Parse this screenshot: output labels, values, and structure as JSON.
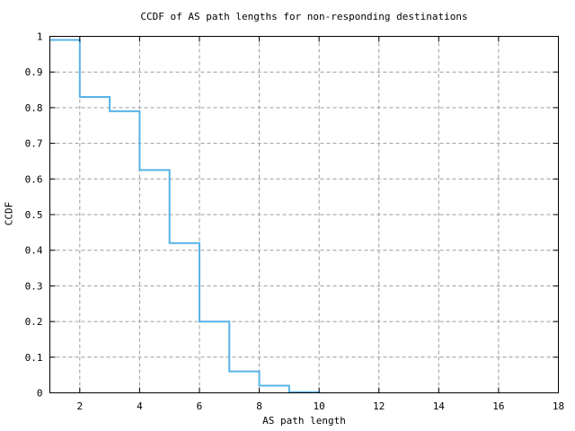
{
  "chart_data": {
    "type": "line",
    "subtype": "step-ccdf",
    "title": "CCDF of AS path lengths for non-responding destinations",
    "xlabel": "AS path length",
    "ylabel": "CCDF",
    "xlim": [
      1,
      18
    ],
    "ylim": [
      0,
      1
    ],
    "x_ticks": [
      2,
      4,
      6,
      8,
      10,
      12,
      14,
      16,
      18
    ],
    "x_tick_labels": [
      "2",
      "4",
      "6",
      "8",
      "10",
      "12",
      "14",
      "16",
      "18"
    ],
    "y_ticks": [
      0,
      0.1,
      0.2,
      0.3,
      0.4,
      0.5,
      0.6,
      0.7,
      0.8,
      0.9,
      1
    ],
    "y_tick_labels": [
      "0",
      "0.1",
      "0.2",
      "0.3",
      "0.4",
      "0.5",
      "0.6",
      "0.7",
      "0.8",
      "0.9",
      "1"
    ],
    "grid": true,
    "legend": "none",
    "series": [
      {
        "name": "ccdf-step",
        "x": [
          1,
          2,
          3,
          4,
          5,
          6,
          7,
          8,
          9,
          10
        ],
        "y": [
          0.99,
          0.83,
          0.79,
          0.625,
          0.42,
          0.2,
          0.06,
          0.02,
          0.002,
          0
        ]
      }
    ],
    "colors": {
      "line": "#56b4e9",
      "grid": "#9a9a9a",
      "border": "#000000",
      "text": "#000000",
      "background": "#ffffff"
    }
  }
}
